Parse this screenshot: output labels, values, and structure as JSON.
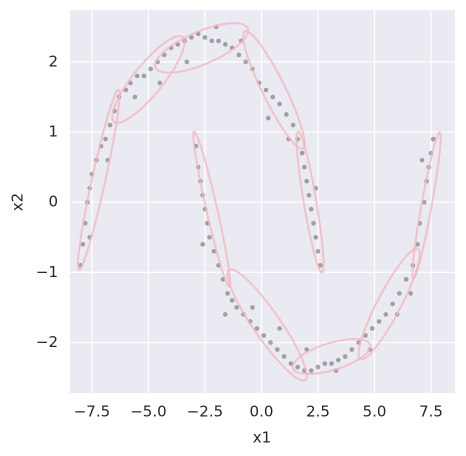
{
  "chart_data": {
    "type": "scatter",
    "xlabel": "x1",
    "ylabel": "x2",
    "xlim": [
      -8.47,
      8.56
    ],
    "ylim": [
      -2.72,
      2.74
    ],
    "xticks": [
      {
        "value": -7.5,
        "label": "−7.5"
      },
      {
        "value": -5,
        "label": "−5.0"
      },
      {
        "value": -2.5,
        "label": "−2.5"
      },
      {
        "value": 0,
        "label": "0.0"
      },
      2.5,
      {
        "value": 5,
        "label": "5.0"
      },
      7.5
    ],
    "yticks": [
      {
        "value": -2,
        "label": "−2"
      },
      {
        "value": -1,
        "label": "−1"
      },
      0,
      1,
      2
    ],
    "grid": true,
    "color": "#555555",
    "ellipse_color": "#f4b6c2",
    "x": [
      -8.0,
      -7.9,
      -7.8,
      -7.7,
      -7.6,
      -7.5,
      -7.3,
      -7.1,
      -6.9,
      -6.7,
      -6.5,
      -6.3,
      -6.0,
      -5.8,
      -5.5,
      -5.2,
      -4.9,
      -4.6,
      -4.3,
      -4.0,
      -3.7,
      -3.4,
      -3.1,
      -2.8,
      -2.5,
      -2.2,
      -1.9,
      -1.6,
      -1.3,
      -1.0,
      -0.7,
      -0.4,
      -0.1,
      0.2,
      0.5,
      0.8,
      1.1,
      1.4,
      1.6,
      1.8,
      1.9,
      2.0,
      2.1,
      2.2,
      2.3,
      2.4,
      2.5,
      2.6,
      -7.6,
      -6.8,
      -5.6,
      -4.5,
      -3.3,
      -2.0,
      -0.9,
      0.3,
      1.2,
      2.4,
      -2.9,
      -2.8,
      -2.7,
      -2.6,
      -2.5,
      -2.4,
      -2.3,
      -2.1,
      -1.9,
      -1.7,
      -1.5,
      -1.3,
      -1.1,
      -0.8,
      -0.5,
      -0.2,
      0.1,
      0.4,
      0.7,
      1.0,
      1.3,
      1.6,
      1.9,
      2.2,
      2.5,
      2.8,
      3.1,
      3.4,
      3.7,
      4.0,
      4.3,
      4.6,
      4.9,
      5.2,
      5.5,
      5.8,
      6.1,
      6.4,
      6.7,
      6.9,
      7.0,
      7.2,
      7.3,
      7.4,
      7.5,
      7.6,
      -2.6,
      -1.6,
      -0.4,
      0.8,
      2.0,
      3.3,
      4.8,
      6.0,
      6.6,
      7.1
    ],
    "y": [
      -0.9,
      -0.6,
      -0.3,
      0.0,
      0.2,
      0.4,
      0.6,
      0.8,
      0.9,
      1.1,
      1.3,
      1.5,
      1.6,
      1.7,
      1.8,
      1.8,
      1.9,
      2.0,
      2.1,
      2.2,
      2.25,
      2.3,
      2.35,
      2.4,
      2.35,
      2.3,
      2.3,
      2.25,
      2.2,
      2.1,
      2.0,
      1.9,
      1.7,
      1.6,
      1.5,
      1.4,
      1.25,
      1.1,
      0.9,
      0.7,
      0.5,
      0.3,
      0.1,
      -0.1,
      -0.3,
      -0.5,
      -0.7,
      -0.9,
      -0.5,
      0.6,
      1.5,
      1.7,
      2.0,
      2.5,
      2.3,
      1.2,
      0.9,
      0.2,
      0.8,
      0.5,
      0.3,
      0.1,
      -0.1,
      -0.3,
      -0.5,
      -0.7,
      -0.9,
      -1.1,
      -1.3,
      -1.4,
      -1.5,
      -1.6,
      -1.7,
      -1.8,
      -1.9,
      -2.0,
      -2.1,
      -2.2,
      -2.3,
      -2.35,
      -2.4,
      -2.4,
      -2.35,
      -2.3,
      -2.3,
      -2.25,
      -2.2,
      -2.1,
      -2.0,
      -1.9,
      -1.8,
      -1.7,
      -1.6,
      -1.45,
      -1.3,
      -1.1,
      -0.9,
      -0.6,
      -0.3,
      0.0,
      0.3,
      0.5,
      0.7,
      0.9,
      -0.6,
      -1.6,
      -1.5,
      -1.8,
      -2.1,
      -2.4,
      -2.1,
      -1.6,
      -1.3,
      0.6
    ],
    "ellipses": [
      {
        "center": [
          -7.2,
          0.32
        ],
        "half_length": 1.56,
        "half_width": 0.25,
        "angle": 54.8
      },
      {
        "center": [
          -5.0,
          1.75
        ],
        "half_length": 1.69,
        "half_width": 0.3,
        "angle": 19
      },
      {
        "center": [
          -2.65,
          2.2
        ],
        "half_length": 2.07,
        "half_width": 0.25,
        "angle": 7
      },
      {
        "center": [
          0.55,
          1.6
        ],
        "half_length": 1.57,
        "half_width": 0.3,
        "angle": -30.6
      },
      {
        "center": [
          2.15,
          0.0
        ],
        "half_length": 1.14,
        "half_width": 0.25,
        "angle": -61
      },
      {
        "center": [
          -2.2,
          -0.1
        ],
        "half_length": 1.36,
        "half_width": 0.2,
        "angle": -54
      },
      {
        "center": [
          0.25,
          -1.75
        ],
        "half_length": 1.9,
        "half_width": 0.3,
        "angle": -23
      },
      {
        "center": [
          3.1,
          -2.2
        ],
        "half_length": 1.72,
        "half_width": 0.2,
        "angle": 5
      },
      {
        "center": [
          5.65,
          -1.45
        ],
        "half_length": 1.54,
        "half_width": 0.3,
        "angle": 29
      },
      {
        "center": [
          7.3,
          -0.05
        ],
        "half_length": 1.2,
        "half_width": 0.2,
        "angle": 60
      }
    ]
  }
}
